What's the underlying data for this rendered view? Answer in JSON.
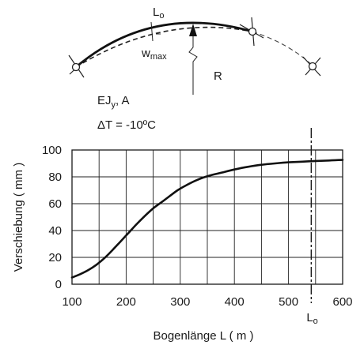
{
  "sketch": {
    "arc_length_label": "L",
    "arc_length_sub": "o",
    "deflection_label": "w",
    "deflection_sub": "max",
    "radius_label": "R",
    "stiffness_label": "EJ",
    "stiffness_sub": "y",
    "stiffness_suffix": ", A",
    "temperature_label": "ΔT = -10ºC"
  },
  "chart_data": {
    "type": "line",
    "title": "",
    "xlabel": "Bogenlänge L ( m )",
    "ylabel": "Verschiebung ( mm )",
    "xlim": [
      100,
      600
    ],
    "ylim": [
      0,
      100
    ],
    "x_ticks": [
      100,
      200,
      300,
      400,
      500,
      600
    ],
    "y_ticks": [
      0,
      20,
      40,
      60,
      80,
      100
    ],
    "grid": true,
    "series": [
      {
        "x": [
          100,
          115,
          130,
          145,
          160,
          175,
          190,
          205,
          220,
          235,
          250,
          265,
          280,
          295,
          310,
          330,
          350,
          375,
          400,
          425,
          450,
          475,
          500,
          525,
          550,
          575,
          600
        ],
        "y": [
          5,
          7.5,
          10.5,
          14.5,
          19.5,
          25.5,
          32,
          38.5,
          45,
          51,
          56.5,
          61,
          65.5,
          70,
          73.5,
          77.5,
          80.5,
          83,
          85.5,
          87.5,
          89,
          90,
          90.8,
          91.3,
          91.8,
          92.2,
          92.6
        ]
      }
    ],
    "annotations": [
      {
        "x": 542,
        "label": "L",
        "label_sub": "o",
        "style": "dash-dot"
      }
    ]
  }
}
